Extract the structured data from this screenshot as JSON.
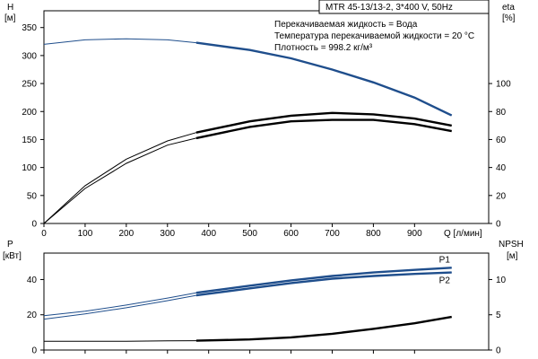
{
  "chart_data": [
    {
      "type": "line",
      "title": "MTR 45-13/13-2, 3*400 V, 50Hz",
      "annotations": [
        "Перекачиваемая жидкость = Вода",
        "Температура перекачиваемой жидкости = 20 °C",
        "Плотность = 998.2 кг/м³"
      ],
      "xlabel": "Q [л/мин]",
      "xlim": [
        0,
        1080
      ],
      "x_ticks": [
        "0",
        "100",
        "200",
        "300",
        "400",
        "500",
        "600",
        "700",
        "800",
        "900"
      ],
      "left_axis": {
        "label": "H",
        "unit": "[м]",
        "ylim": [
          0,
          380
        ],
        "ticks": [
          "0",
          "50",
          "100",
          "150",
          "200",
          "250",
          "300",
          "350"
        ]
      },
      "right_axis": {
        "label": "eta",
        "unit": "[%]",
        "ylim": [
          0,
          152
        ],
        "ticks": [
          "0",
          "20",
          "40",
          "60",
          "80",
          "100"
        ]
      },
      "series": [
        {
          "axis": "left",
          "color": "#1f4e8c",
          "x": [
            0,
            100,
            200,
            300,
            370,
            500,
            600,
            700,
            800,
            900,
            990
          ],
          "y": [
            320,
            328,
            330,
            328,
            323,
            310,
            295,
            275,
            252,
            225,
            193
          ]
        },
        {
          "axis": "right",
          "color": "#000000",
          "x": [
            0,
            100,
            200,
            300,
            370,
            500,
            600,
            700,
            800,
            900,
            990
          ],
          "y": [
            0,
            27,
            46,
            59,
            65,
            73,
            77,
            79,
            78,
            75,
            70
          ]
        },
        {
          "axis": "right",
          "color": "#000000",
          "x": [
            0,
            100,
            200,
            300,
            370,
            500,
            600,
            700,
            800,
            900,
            990
          ],
          "y": [
            0,
            25,
            43,
            56,
            61,
            69,
            73,
            74,
            74,
            71,
            66
          ]
        }
      ],
      "legend": "none",
      "grid": false
    },
    {
      "type": "line",
      "xlim": [
        0,
        1080
      ],
      "left_axis": {
        "label": "P",
        "unit": "[кВт]",
        "ylim": [
          0,
          55
        ],
        "ticks": [
          "0",
          "20",
          "40"
        ]
      },
      "right_axis": {
        "label": "NPSH",
        "unit": "[м]",
        "ylim": [
          0,
          13.75
        ],
        "ticks": [
          "0",
          "5",
          "10"
        ]
      },
      "series": [
        {
          "name": "P1",
          "axis": "left",
          "color": "#1f4e8c",
          "x": [
            0,
            100,
            200,
            300,
            370,
            500,
            600,
            700,
            800,
            900,
            990
          ],
          "y": [
            19.5,
            22,
            25.5,
            29.5,
            32.5,
            36.5,
            39.5,
            42,
            44,
            45.5,
            46.7
          ]
        },
        {
          "name": "P2",
          "axis": "left",
          "color": "#1f4e8c",
          "x": [
            0,
            100,
            200,
            300,
            370,
            500,
            600,
            700,
            800,
            900,
            990
          ],
          "y": [
            17.5,
            20.5,
            24,
            28,
            31,
            35,
            38,
            40.5,
            42,
            43.2,
            44
          ]
        },
        {
          "axis": "right",
          "color": "#000000",
          "x": [
            0,
            100,
            200,
            300,
            370,
            500,
            600,
            700,
            800,
            900,
            990
          ],
          "y": [
            1.25,
            1.25,
            1.25,
            1.3,
            1.33,
            1.5,
            1.8,
            2.3,
            3.0,
            3.8,
            4.7
          ]
        }
      ],
      "legend": "inline labels",
      "grid": false
    }
  ]
}
